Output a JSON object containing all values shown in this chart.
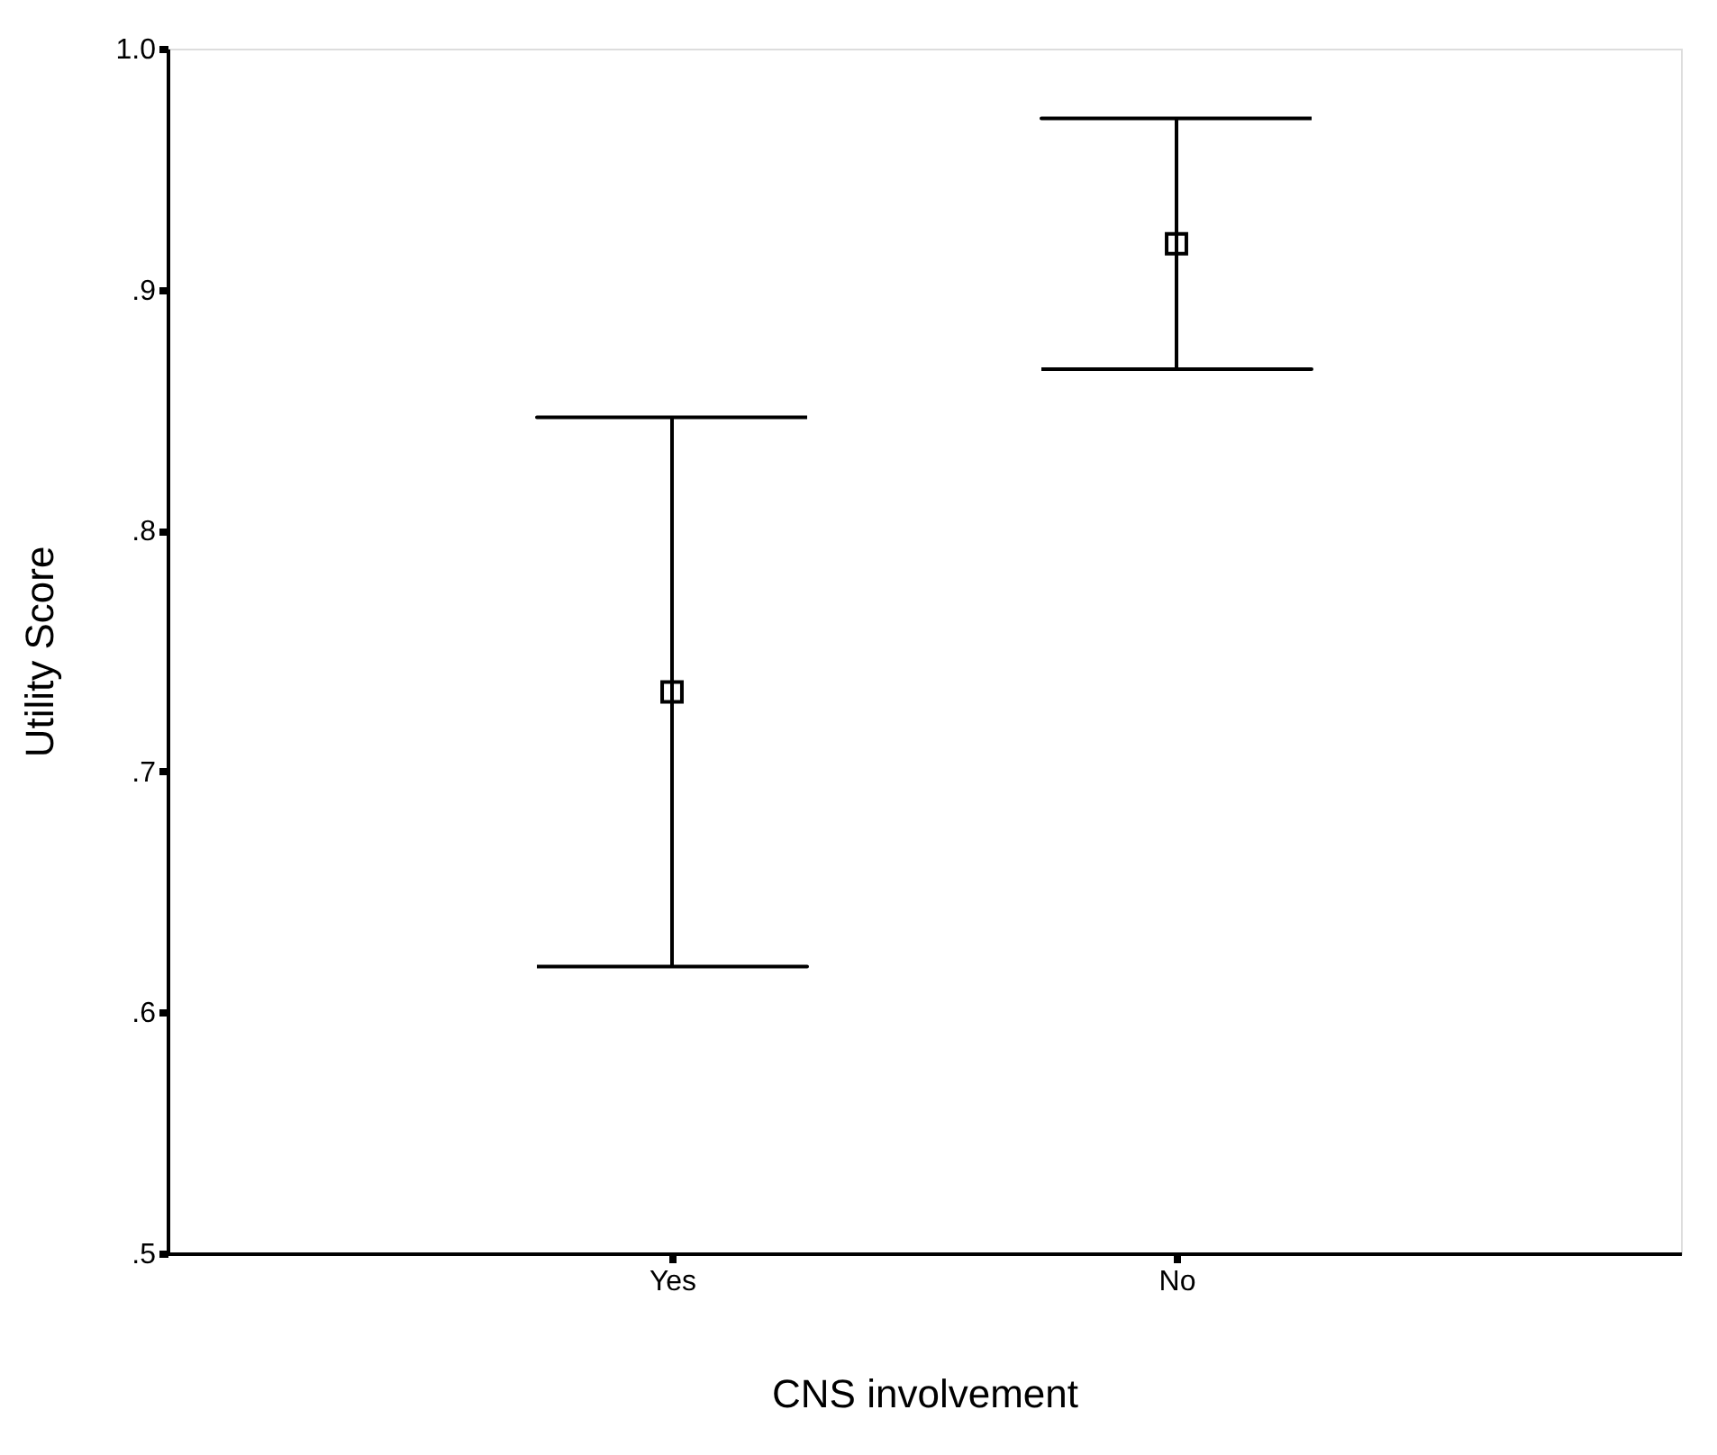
{
  "chart_data": {
    "type": "scatter",
    "xlabel": "CNS involvement",
    "ylabel": "Utility Score",
    "categories": [
      "Yes",
      "No"
    ],
    "values": [
      0.733,
      0.919
    ],
    "errors": [
      0.114,
      0.052
    ],
    "color": "#000000",
    "marker": "square",
    "ylim": [
      0.5,
      1.0
    ],
    "yticks": [
      {
        "value": 0.5,
        "label": ".5"
      },
      {
        "value": 0.6,
        "label": ".6"
      },
      {
        "value": 0.7,
        "label": ".7"
      },
      {
        "value": 0.8,
        "label": ".8"
      },
      {
        "value": 0.9,
        "label": ".9"
      },
      {
        "value": 1.0,
        "label": "1.0"
      }
    ],
    "grid": false
  }
}
